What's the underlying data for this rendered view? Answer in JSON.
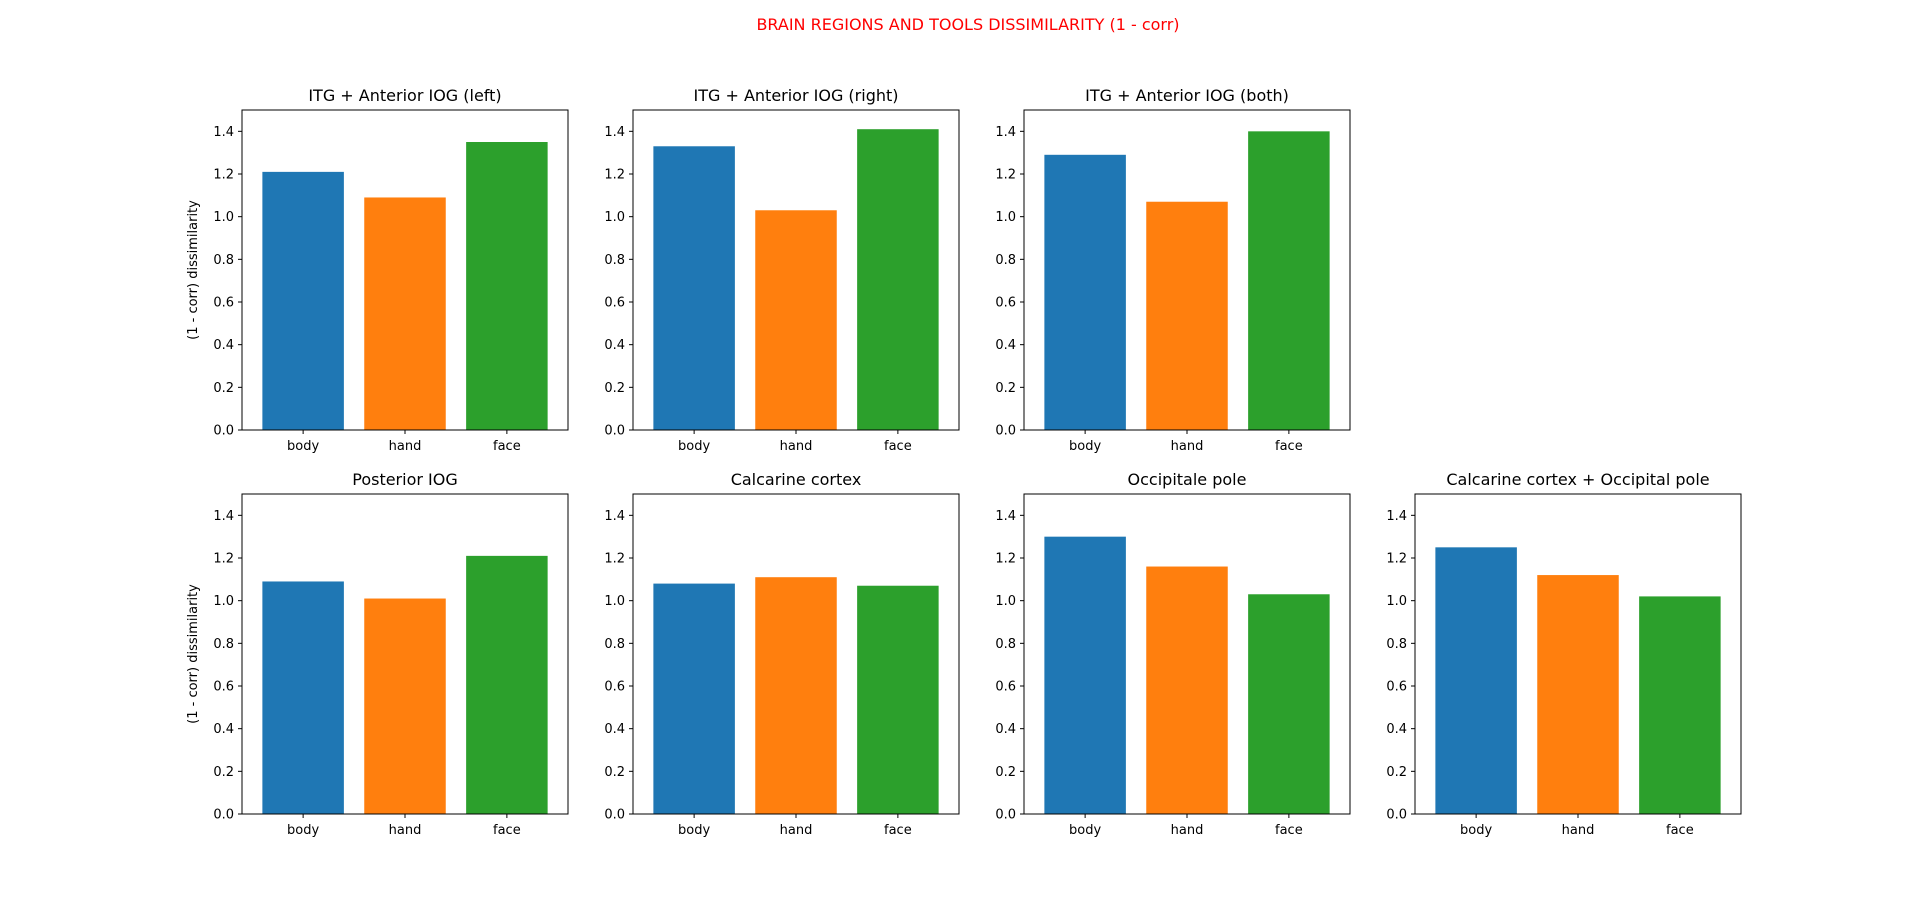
{
  "figure": {
    "suptitle": "BRAIN REGIONS AND TOOLS DISSIMILARITY (1 - corr)",
    "suptitle_color": "#ff0000"
  },
  "chart_data": [
    {
      "type": "bar",
      "title": "ITG + Anterior IOG (left)",
      "categories": [
        "body",
        "hand",
        "face"
      ],
      "values": [
        1.21,
        1.09,
        1.35
      ],
      "colors": [
        "#1f77b4",
        "#ff7f0e",
        "#2ca02c"
      ],
      "xlabel": "",
      "ylabel": "(1 - corr) dissimilarity",
      "ylim": [
        0,
        1.5
      ],
      "yticks": [
        "0.0",
        "0.2",
        "0.4",
        "0.6",
        "0.8",
        "1.0",
        "1.2",
        "1.4"
      ],
      "grid": false
    },
    {
      "type": "bar",
      "title": "ITG + Anterior IOG (right)",
      "categories": [
        "body",
        "hand",
        "face"
      ],
      "values": [
        1.33,
        1.03,
        1.41
      ],
      "colors": [
        "#1f77b4",
        "#ff7f0e",
        "#2ca02c"
      ],
      "xlabel": "",
      "ylabel": "",
      "ylim": [
        0,
        1.5
      ],
      "yticks": [
        "0.0",
        "0.2",
        "0.4",
        "0.6",
        "0.8",
        "1.0",
        "1.2",
        "1.4"
      ],
      "grid": false
    },
    {
      "type": "bar",
      "title": "ITG + Anterior IOG (both)",
      "categories": [
        "body",
        "hand",
        "face"
      ],
      "values": [
        1.29,
        1.07,
        1.4
      ],
      "colors": [
        "#1f77b4",
        "#ff7f0e",
        "#2ca02c"
      ],
      "xlabel": "",
      "ylabel": "",
      "ylim": [
        0,
        1.5
      ],
      "yticks": [
        "0.0",
        "0.2",
        "0.4",
        "0.6",
        "0.8",
        "1.0",
        "1.2",
        "1.4"
      ],
      "grid": false
    },
    {
      "type": "bar",
      "title": "Posterior IOG",
      "categories": [
        "body",
        "hand",
        "face"
      ],
      "values": [
        1.09,
        1.01,
        1.21
      ],
      "colors": [
        "#1f77b4",
        "#ff7f0e",
        "#2ca02c"
      ],
      "xlabel": "",
      "ylabel": "(1 - corr) dissimilarity",
      "ylim": [
        0,
        1.5
      ],
      "yticks": [
        "0.0",
        "0.2",
        "0.4",
        "0.6",
        "0.8",
        "1.0",
        "1.2",
        "1.4"
      ],
      "grid": false
    },
    {
      "type": "bar",
      "title": "Calcarine cortex",
      "categories": [
        "body",
        "hand",
        "face"
      ],
      "values": [
        1.08,
        1.11,
        1.07
      ],
      "colors": [
        "#1f77b4",
        "#ff7f0e",
        "#2ca02c"
      ],
      "xlabel": "",
      "ylabel": "",
      "ylim": [
        0,
        1.5
      ],
      "yticks": [
        "0.0",
        "0.2",
        "0.4",
        "0.6",
        "0.8",
        "1.0",
        "1.2",
        "1.4"
      ],
      "grid": false
    },
    {
      "type": "bar",
      "title": "Occipitale pole",
      "categories": [
        "body",
        "hand",
        "face"
      ],
      "values": [
        1.3,
        1.16,
        1.03
      ],
      "colors": [
        "#1f77b4",
        "#ff7f0e",
        "#2ca02c"
      ],
      "xlabel": "",
      "ylabel": "",
      "ylim": [
        0,
        1.5
      ],
      "yticks": [
        "0.0",
        "0.2",
        "0.4",
        "0.6",
        "0.8",
        "1.0",
        "1.2",
        "1.4"
      ],
      "grid": false
    },
    {
      "type": "bar",
      "title": "Calcarine cortex + Occipital pole",
      "categories": [
        "body",
        "hand",
        "face"
      ],
      "values": [
        1.25,
        1.12,
        1.02
      ],
      "colors": [
        "#1f77b4",
        "#ff7f0e",
        "#2ca02c"
      ],
      "xlabel": "",
      "ylabel": "",
      "ylim": [
        0,
        1.5
      ],
      "yticks": [
        "0.0",
        "0.2",
        "0.4",
        "0.6",
        "0.8",
        "1.0",
        "1.2",
        "1.4"
      ],
      "grid": false
    }
  ]
}
